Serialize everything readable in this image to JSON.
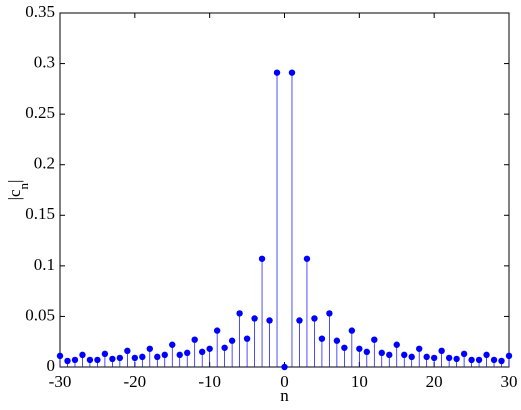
{
  "chart_data": {
    "type": "stem",
    "color": "#0000ff",
    "xlabel": "n",
    "ylabel": [
      "|c",
      "n",
      "|"
    ],
    "x": [
      -30,
      -29,
      -28,
      -27,
      -26,
      -25,
      -24,
      -23,
      -22,
      -21,
      -20,
      -19,
      -18,
      -17,
      -16,
      -15,
      -14,
      -13,
      -12,
      -11,
      -10,
      -9,
      -8,
      -7,
      -6,
      -5,
      -4,
      -3,
      -2,
      -1,
      0,
      1,
      2,
      3,
      4,
      5,
      6,
      7,
      8,
      9,
      10,
      11,
      12,
      13,
      14,
      15,
      16,
      17,
      18,
      19,
      20,
      21,
      22,
      23,
      24,
      25,
      26,
      27,
      28,
      29,
      30
    ],
    "values": [
      0.011,
      0.006,
      0.007,
      0.012,
      0.007,
      0.007,
      0.013,
      0.008,
      0.009,
      0.016,
      0.009,
      0.01,
      0.018,
      0.01,
      0.012,
      0.022,
      0.012,
      0.014,
      0.027,
      0.015,
      0.018,
      0.036,
      0.019,
      0.026,
      0.053,
      0.028,
      0.048,
      0.107,
      0.046,
      0.291,
      0,
      0.291,
      0.046,
      0.107,
      0.048,
      0.028,
      0.053,
      0.026,
      0.019,
      0.036,
      0.018,
      0.015,
      0.027,
      0.014,
      0.012,
      0.022,
      0.012,
      0.01,
      0.018,
      0.01,
      0.009,
      0.016,
      0.009,
      0.008,
      0.013,
      0.007,
      0.007,
      0.012,
      0.007,
      0.006,
      0.011
    ],
    "xlim": [
      -30,
      30
    ],
    "xticks": [
      -30,
      -20,
      -10,
      0,
      10,
      20,
      30
    ],
    "ylim": [
      0,
      0.35
    ],
    "yticks": [
      0,
      0.05,
      0.1,
      0.15,
      0.2,
      0.25,
      0.3,
      0.35
    ]
  }
}
